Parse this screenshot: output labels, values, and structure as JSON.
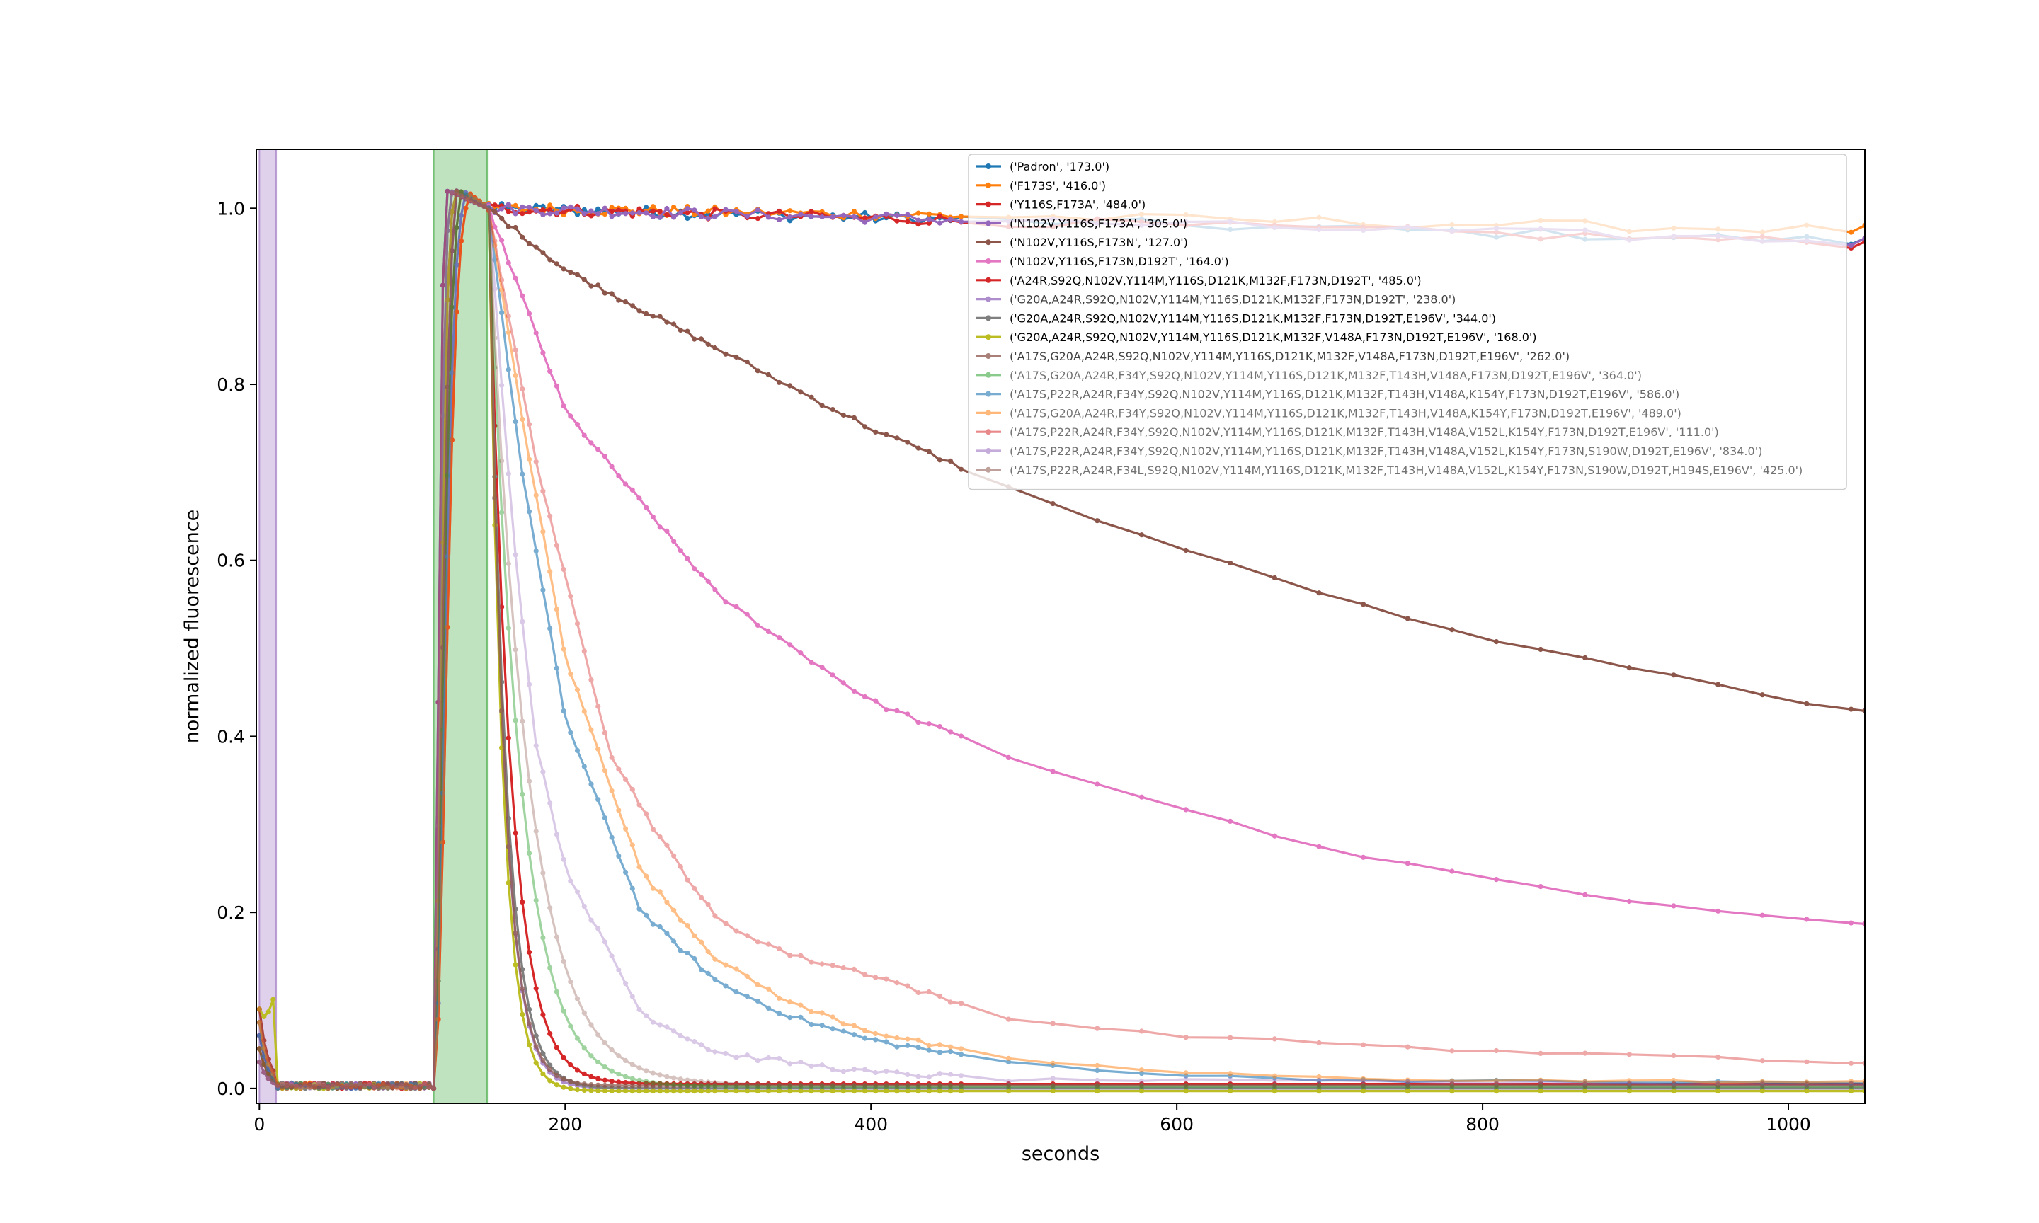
{
  "chart_data": {
    "type": "line",
    "title": "",
    "xlabel": "seconds",
    "ylabel": "normalized fluorescence",
    "xlim": [
      -2,
      1050
    ],
    "ylim": [
      -0.017,
      1.067
    ],
    "x_ticks": [
      0,
      200,
      400,
      600,
      800,
      1000
    ],
    "y_ticks": [
      0.0,
      0.2,
      0.4,
      0.6,
      0.8,
      1.0
    ],
    "grid": false,
    "legend_position": "top-right",
    "shaded_regions": [
      {
        "x_start": 0,
        "x_end": 11,
        "color": "#9467bd"
      },
      {
        "x_start": 114,
        "x_end": 149,
        "color": "#2ca02c"
      }
    ],
    "series": [
      {
        "name": "('Padron', '173.0')",
        "color": "#1f77b4",
        "model": "stable",
        "end": 0.962,
        "alpha": 1.0
      },
      {
        "name": "('F173S', '416.0')",
        "color": "#ff7f0e",
        "model": "stable",
        "end": 0.975,
        "alpha": 1.0
      },
      {
        "name": "('Y116S,F173A', '484.0')",
        "color": "#d62728",
        "model": "stable",
        "end": 0.96,
        "alpha": 1.0
      },
      {
        "name": "('N102V,Y116S,F173A', '305.0')",
        "color": "#9467bd",
        "model": "stable",
        "end": 0.962,
        "alpha": 1.0
      },
      {
        "name": "('N102V,Y116S,F173N', '127.0')",
        "color": "#8c564b",
        "model": "decay",
        "tau": 1120,
        "floor": 0.0,
        "alpha": 1.0,
        "points": [
          [
            150,
            1.0
          ],
          [
            200,
            0.93
          ],
          [
            300,
            0.84
          ],
          [
            400,
            0.75
          ],
          [
            500,
            0.675
          ],
          [
            600,
            0.615
          ],
          [
            700,
            0.56
          ],
          [
            800,
            0.51
          ],
          [
            900,
            0.478
          ],
          [
            1000,
            0.44
          ],
          [
            1050,
            0.43
          ]
        ]
      },
      {
        "name": "('N102V,Y116S,F173N,D192T', '164.0')",
        "color": "#e377c2",
        "model": "decay",
        "tau": 180,
        "floor": 0.0,
        "alpha": 1.0,
        "points": [
          [
            150,
            1.0
          ],
          [
            200,
            0.77
          ],
          [
            300,
            0.56
          ],
          [
            400,
            0.44
          ],
          [
            500,
            0.37
          ],
          [
            600,
            0.32
          ],
          [
            700,
            0.27
          ],
          [
            800,
            0.24
          ],
          [
            900,
            0.21
          ],
          [
            1000,
            0.195
          ],
          [
            1050,
            0.188
          ]
        ]
      },
      {
        "name": "('A24R,S92Q,N102V,Y114M,Y116S,D121K,M132F,F173N,D192T', '485.0')",
        "color": "#d62728",
        "model": "decay",
        "tau": 14,
        "floor": 0.005,
        "alpha": 1.0
      },
      {
        "name": "('G20A,A24R,S92Q,N102V,Y114M,Y116S,D121K,M132F,F173N,D192T', '238.0')",
        "color": "#9467bd",
        "model": "decay",
        "tau": 10,
        "floor": 0.0,
        "alpha": 0.75
      },
      {
        "name": "('G20A,A24R,S92Q,N102V,Y114M,Y116S,D121K,M132F,F173N,D192T,E196V', '344.0')",
        "color": "#7f7f7f",
        "model": "decay",
        "tau": 11,
        "floor": 0.0,
        "alpha": 1.0
      },
      {
        "name": "('G20A,A24R,S92Q,N102V,Y114M,Y116S,D121K,M132F,V148A,F173N,D192T,E196V', '168.0')",
        "color": "#bcbd22",
        "model": "decay",
        "tau": 9,
        "floor": -0.003,
        "alpha": 1.0
      },
      {
        "name": "('A17S,G20A,A24R,S92Q,N102V,Y114M,Y116S,D121K,M132F,V148A,F173N,D192T,E196V', '262.0')",
        "color": "#8c564b",
        "model": "decay",
        "tau": 10,
        "floor": 0.003,
        "alpha": 0.75
      },
      {
        "name": "('A17S,G20A,A24R,F34Y,S92Q,N102V,Y114M,Y116S,D121K,M132F,T143H,V148A,F173N,D192T,E196V', '364.0')",
        "color": "#2ca02c",
        "model": "decay",
        "tau": 20,
        "floor": 0.002,
        "alpha": 0.45
      },
      {
        "name": "('A17S,P22R,A24R,F34Y,S92Q,N102V,Y114M,Y116S,D121K,M132F,T143H,V148A,K154Y,F173N,D192T,E196V', '586.0')",
        "color": "#1f77b4",
        "model": "decay",
        "tau": 70,
        "floor": 0.005,
        "alpha": 0.6,
        "points": [
          [
            150,
            1.0
          ],
          [
            170,
            0.72
          ],
          [
            200,
            0.42
          ],
          [
            250,
            0.2
          ],
          [
            300,
            0.12
          ],
          [
            350,
            0.08
          ],
          [
            400,
            0.055
          ],
          [
            450,
            0.04
          ],
          [
            500,
            0.028
          ],
          [
            600,
            0.015
          ],
          [
            700,
            0.01
          ],
          [
            800,
            0.008
          ],
          [
            1050,
            0.006
          ]
        ]
      },
      {
        "name": "('A17S,G20A,A24R,F34Y,S92Q,N102V,Y114M,Y116S,D121K,M132F,T143H,V148A,K154Y,F173N,D192T,E196V', '489.0')",
        "color": "#ff7f0e",
        "model": "decay",
        "tau": 80,
        "floor": 0.006,
        "alpha": 0.5,
        "points": [
          [
            150,
            1.0
          ],
          [
            170,
            0.78
          ],
          [
            200,
            0.49
          ],
          [
            250,
            0.245
          ],
          [
            300,
            0.145
          ],
          [
            350,
            0.095
          ],
          [
            400,
            0.065
          ],
          [
            450,
            0.045
          ],
          [
            500,
            0.032
          ],
          [
            600,
            0.018
          ],
          [
            700,
            0.012
          ],
          [
            800,
            0.009
          ],
          [
            1050,
            0.007
          ]
        ]
      },
      {
        "name": "('A17S,P22R,A24R,F34Y,S92Q,N102V,Y114M,Y116S,D121K,M132F,T143H,V148A,V152L,K154Y,F173N,D192T,E196V', '111.0')",
        "color": "#d62728",
        "model": "decay",
        "tau": 110,
        "floor": 0.025,
        "alpha": 0.4,
        "points": [
          [
            150,
            1.0
          ],
          [
            180,
            0.72
          ],
          [
            200,
            0.58
          ],
          [
            230,
            0.38
          ],
          [
            260,
            0.29
          ],
          [
            300,
            0.19
          ],
          [
            350,
            0.15
          ],
          [
            400,
            0.13
          ],
          [
            450,
            0.1
          ],
          [
            500,
            0.077
          ],
          [
            600,
            0.06
          ],
          [
            700,
            0.052
          ],
          [
            800,
            0.042
          ],
          [
            900,
            0.038
          ],
          [
            1050,
            0.028
          ]
        ]
      },
      {
        "name": "('A17S,P22R,A24R,F34Y,S92Q,N102V,Y114M,Y116S,D121K,M132F,T143H,V148A,V152L,K154Y,F173N,S190W,D192T,E196V', '834.0')",
        "color": "#9467bd",
        "model": "decay",
        "tau": 40,
        "floor": 0.002,
        "alpha": 0.35,
        "points": [
          [
            150,
            1.0
          ],
          [
            165,
            0.65
          ],
          [
            180,
            0.4
          ],
          [
            200,
            0.25
          ],
          [
            250,
            0.085
          ],
          [
            300,
            0.04
          ],
          [
            400,
            0.018
          ],
          [
            500,
            0.01
          ],
          [
            1050,
            0.004
          ]
        ]
      },
      {
        "name": "('A17S,P22R,A24R,F34L,S92Q,N102V,Y114M,Y116S,D121K,M132F,T143H,V148A,V152L,K154Y,F173N,S190W,D192T,H194S,E196V', '425.0')",
        "color": "#8c564b",
        "model": "decay",
        "tau": 25,
        "floor": 0.004,
        "alpha": 0.35
      }
    ]
  }
}
